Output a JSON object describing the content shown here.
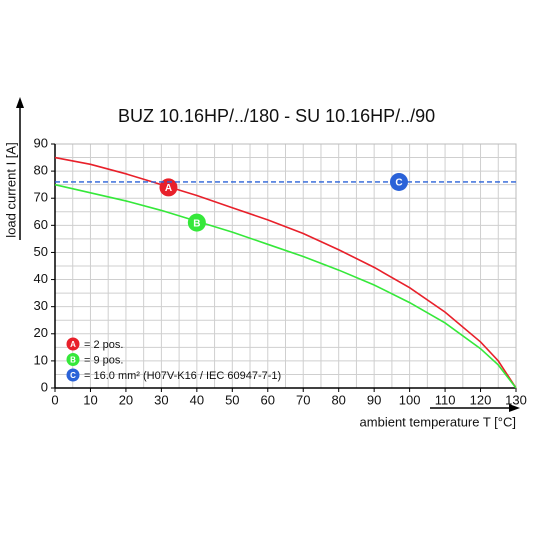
{
  "chart_data": {
    "type": "line",
    "title": "BUZ 10.16HP/../180 - SU 10.16HP/../90",
    "xlabel": "ambient temperature T [°C]",
    "ylabel": "load current I [A]",
    "xlim": [
      0,
      130
    ],
    "ylim": [
      0,
      90
    ],
    "xticks": [
      0,
      10,
      20,
      30,
      40,
      50,
      60,
      70,
      80,
      90,
      100,
      110,
      120,
      130
    ],
    "yticks": [
      0,
      10,
      20,
      30,
      40,
      50,
      60,
      70,
      80,
      90
    ],
    "xgrid": [
      0,
      5,
      10,
      15,
      20,
      25,
      30,
      35,
      40,
      45,
      50,
      55,
      60,
      65,
      70,
      75,
      80,
      85,
      90,
      95,
      100,
      105,
      110,
      115,
      120,
      125,
      130
    ],
    "ygrid": [
      0,
      5,
      10,
      15,
      20,
      25,
      30,
      35,
      40,
      45,
      50,
      55,
      60,
      65,
      70,
      75,
      80,
      85,
      90
    ],
    "grid": true,
    "series": [
      {
        "name": "= 2 pos.",
        "marker": "A",
        "marker_at": [
          32,
          74
        ],
        "color": "#e8202a",
        "dashed": false,
        "x": [
          0,
          10,
          20,
          30,
          40,
          50,
          60,
          70,
          80,
          90,
          100,
          110,
          120,
          125,
          130
        ],
        "values": [
          85,
          82.5,
          79,
          75,
          71,
          66.5,
          62,
          57,
          51,
          44.5,
          37,
          28,
          17,
          10,
          0
        ]
      },
      {
        "name": "= 9 pos.",
        "marker": "B",
        "marker_at": [
          40,
          61
        ],
        "color": "#35e83a",
        "dashed": false,
        "x": [
          0,
          10,
          20,
          30,
          40,
          50,
          60,
          70,
          80,
          90,
          100,
          110,
          120,
          125,
          130
        ],
        "values": [
          75,
          72,
          69,
          65.5,
          61.5,
          57.5,
          53,
          48.5,
          43.5,
          38,
          31.5,
          24,
          14.5,
          8.5,
          0
        ]
      },
      {
        "name": "= 16.0 mm² (H07V-K16 / IEC 60947-7-1)",
        "marker": "C",
        "marker_at": [
          97,
          76
        ],
        "color": "#2a62d8",
        "dashed": true,
        "x": [
          0,
          130
        ],
        "values": [
          76,
          76
        ]
      }
    ]
  }
}
